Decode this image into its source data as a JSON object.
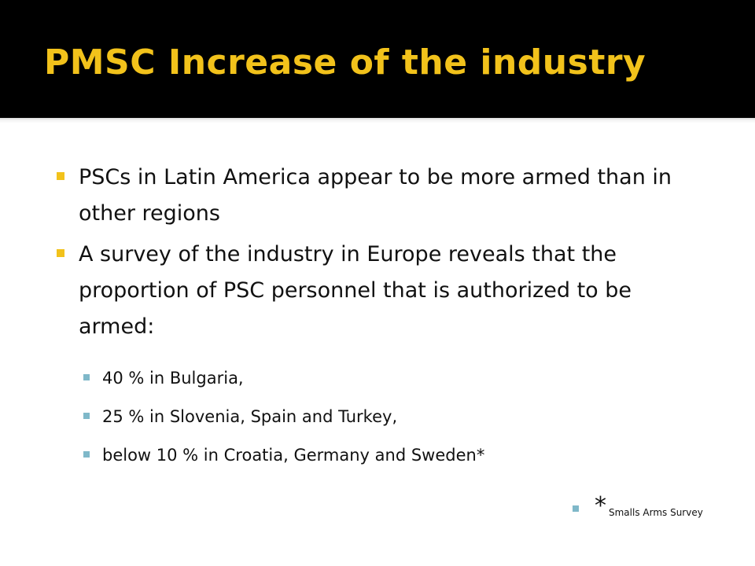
{
  "slide": {
    "title": "PMSC  Increase of the industry",
    "bullets": [
      {
        "text": "PSCs in Latin America appear to be more armed than in other regions"
      },
      {
        "text": "A survey of the industry in Europe reveals that the proportion of PSC personnel that is authorized to be armed:"
      }
    ],
    "sub_bullets": [
      {
        "text": "40 % in Bulgaria,"
      },
      {
        "text": "25 % in Slovenia, Spain and Turkey,"
      },
      {
        "text": "below 10 % in Croatia, Germany and Sweden*"
      }
    ],
    "footnote": {
      "asterisk": "*",
      "source": "Smalls Arms Survey"
    }
  },
  "colors": {
    "title": "#f2c21b",
    "bullet_marker": "#f2c21b",
    "sub_bullet_marker": "#7fb8c9",
    "header_background": "#000000",
    "content_background": "#ffffff",
    "text": "#111111"
  }
}
